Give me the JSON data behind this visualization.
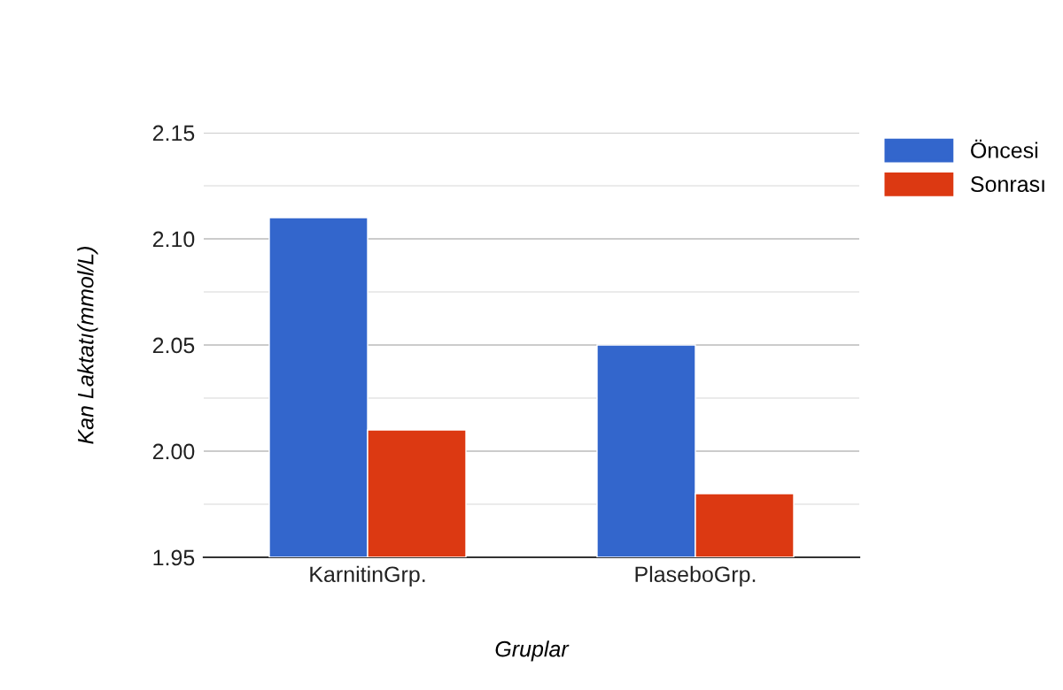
{
  "chart_data": {
    "type": "bar",
    "xlabel": "Gruplar",
    "ylabel": "Kan Laktatı(mmol/L)",
    "categories": [
      "KarnitinGrp.",
      "PlaseboGrp."
    ],
    "series": [
      {
        "name": "Öncesi",
        "color": "#3366cc",
        "values": [
          2.11,
          2.05
        ]
      },
      {
        "name": "Sonrası",
        "color": "#dc3912",
        "values": [
          2.01,
          1.98
        ]
      }
    ],
    "ylim": [
      1.95,
      2.15
    ],
    "yticks": [
      {
        "value": 1.95,
        "label": "1.95"
      },
      {
        "value": 1.975,
        "label": null
      },
      {
        "value": 2.0,
        "label": "2.00"
      },
      {
        "value": 2.025,
        "label": null
      },
      {
        "value": 2.05,
        "label": "2.05"
      },
      {
        "value": 2.075,
        "label": null
      },
      {
        "value": 2.1,
        "label": "2.10"
      },
      {
        "value": 2.125,
        "label": null
      },
      {
        "value": 2.15,
        "label": "2.15"
      }
    ],
    "grid": "y",
    "legend": "top right"
  }
}
